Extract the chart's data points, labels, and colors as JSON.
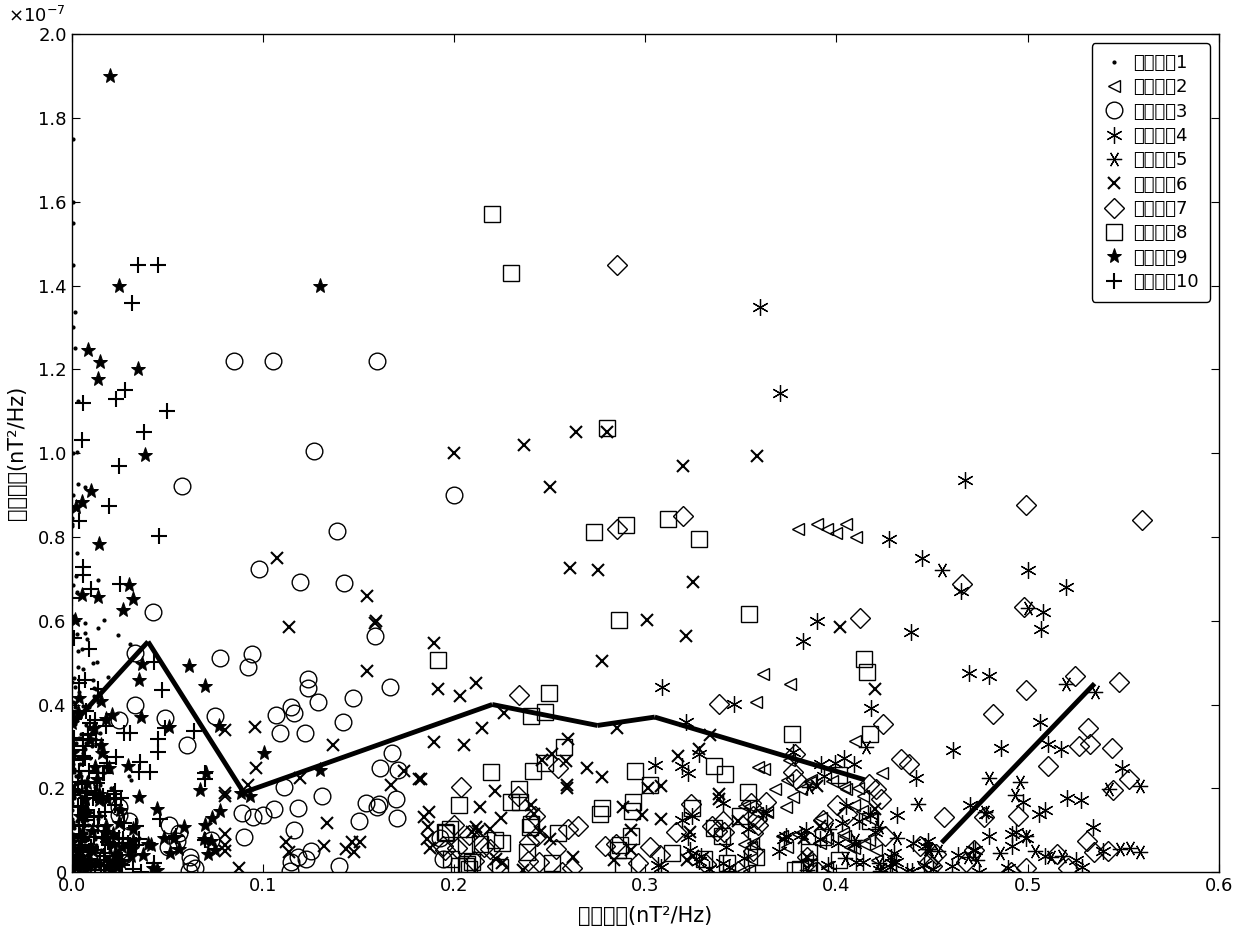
{
  "xlabel": "磁道能量(nT²/Hz)",
  "ylabel": "噪声能量(nT²/Hz)",
  "xlim": [
    0,
    0.6
  ],
  "ylim": [
    0,
    2e-07
  ],
  "legend_labels": [
    "噪声种甛1",
    "噪声种甛2",
    "噪声种甛3",
    "噪声种甛4",
    "噪声种甛5",
    "噪声种甛6",
    "噪声种甛7",
    "噪声种甛8",
    "噪声种甛9",
    "噪声种甛10"
  ],
  "line_segments": [
    [
      [
        0.0,
        0.04
      ],
      [
        3.5e-08,
        5.5e-08
      ]
    ],
    [
      [
        0.04,
        0.09
      ],
      [
        5.5e-08,
        1.9e-08
      ]
    ],
    [
      [
        0.09,
        0.22
      ],
      [
        1.9e-08,
        4e-08
      ]
    ],
    [
      [
        0.22,
        0.275
      ],
      [
        4e-08,
        3.5e-08
      ]
    ],
    [
      [
        0.275,
        0.305
      ],
      [
        3.5e-08,
        3.7e-08
      ]
    ],
    [
      [
        0.305,
        0.415
      ],
      [
        3.7e-08,
        2.2e-08
      ]
    ],
    [
      [
        0.455,
        0.535
      ],
      [
        7e-09,
        4.5e-08
      ]
    ]
  ]
}
